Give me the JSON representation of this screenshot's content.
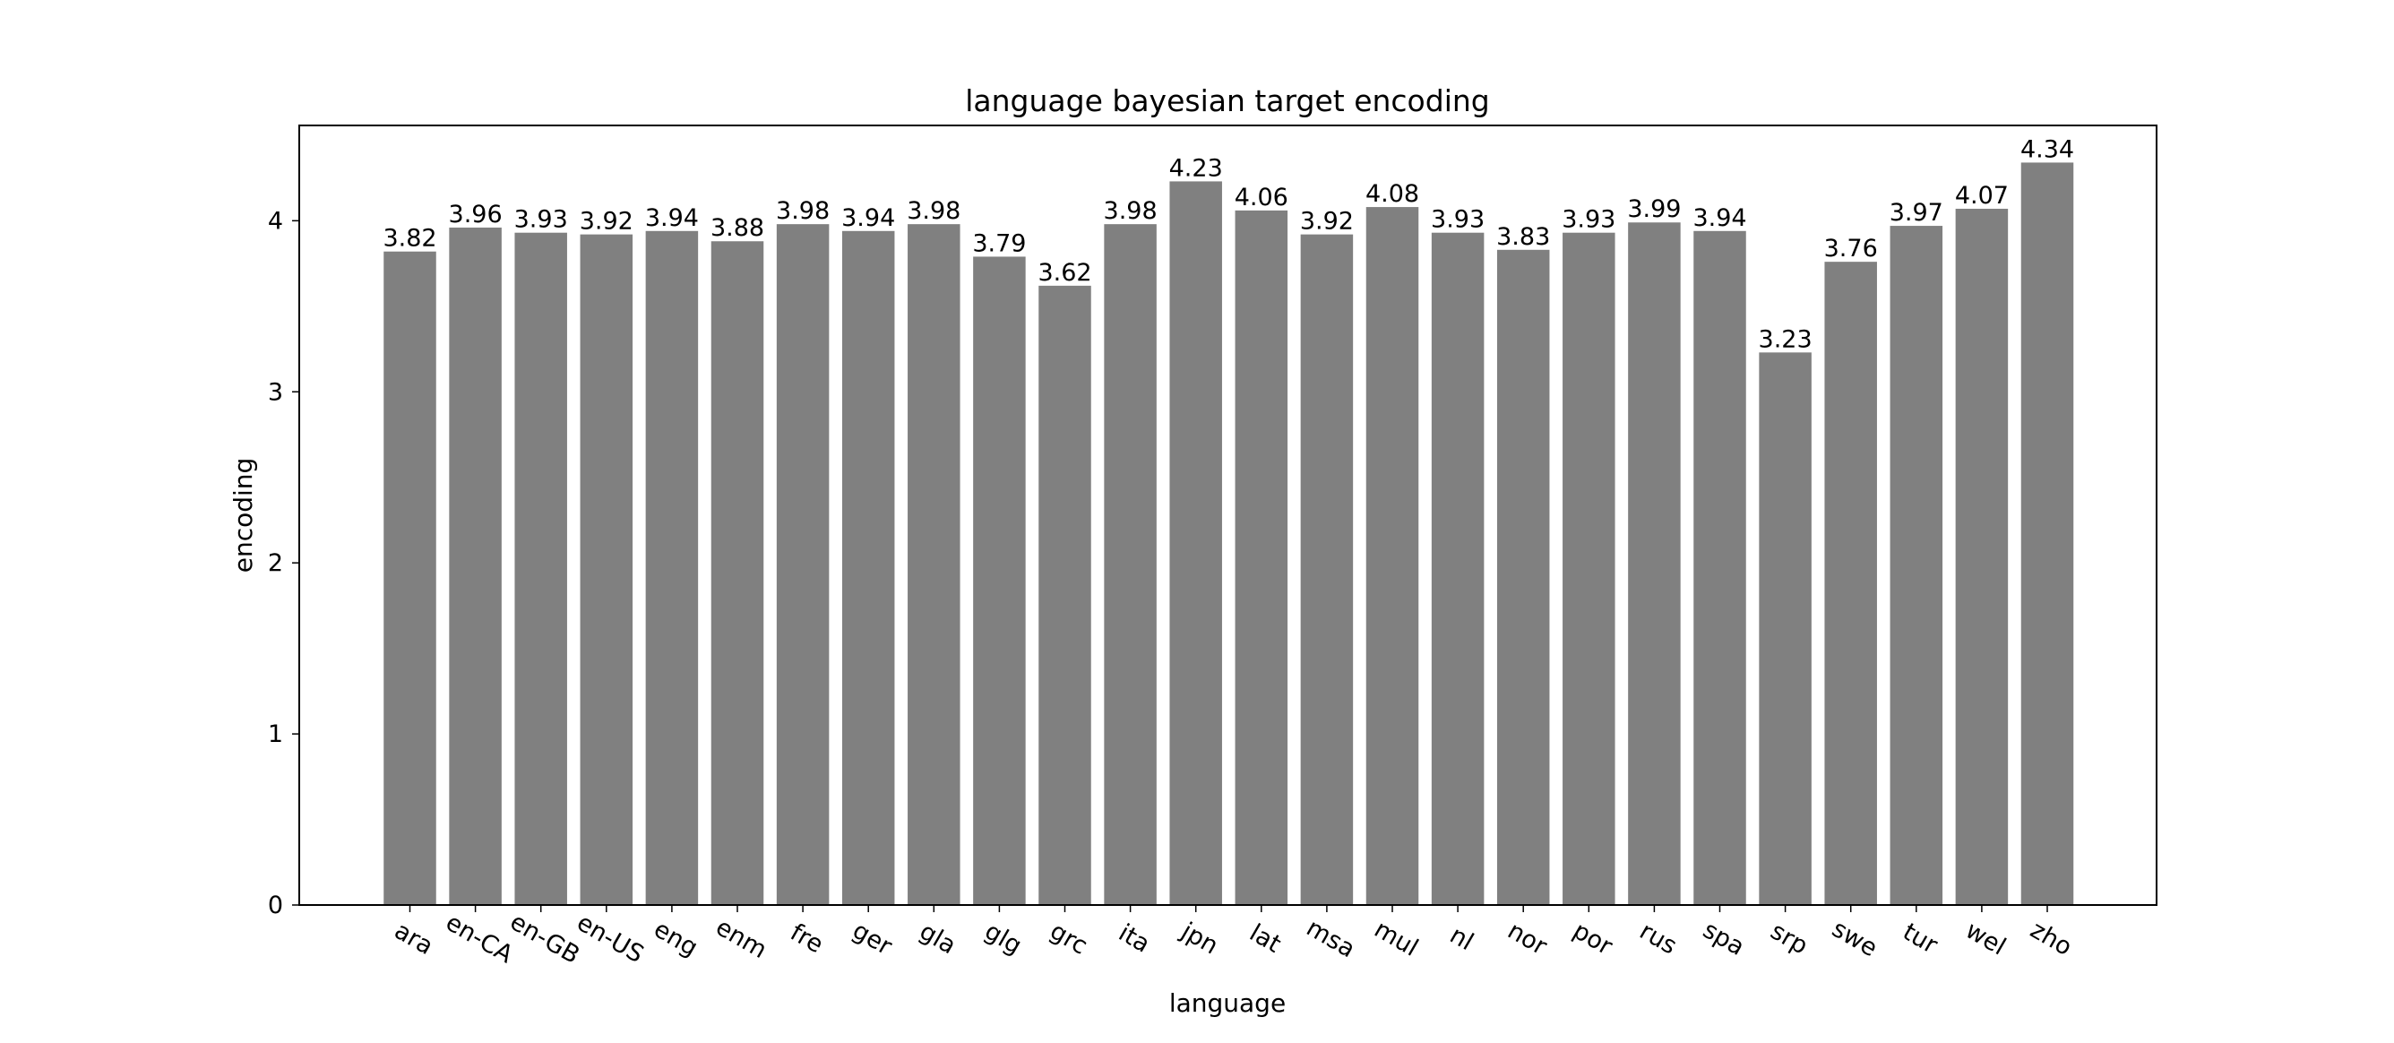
{
  "chart_data": {
    "type": "bar",
    "title": "language bayesian target encoding",
    "xlabel": "language",
    "ylabel": "encoding",
    "categories": [
      "ara",
      "en-CA",
      "en-GB",
      "en-US",
      "eng",
      "enm",
      "fre",
      "ger",
      "gla",
      "glg",
      "grc",
      "ita",
      "jpn",
      "lat",
      "msa",
      "mul",
      "nl",
      "nor",
      "por",
      "rus",
      "spa",
      "srp",
      "swe",
      "tur",
      "wel",
      "zho"
    ],
    "values": [
      3.82,
      3.96,
      3.93,
      3.92,
      3.94,
      3.88,
      3.98,
      3.94,
      3.98,
      3.79,
      3.62,
      3.98,
      4.23,
      4.06,
      3.92,
      4.08,
      3.93,
      3.83,
      3.93,
      3.99,
      3.94,
      3.23,
      3.76,
      3.97,
      4.07,
      4.34
    ],
    "data_labels": [
      "3.82",
      "3.96",
      "3.93",
      "3.92",
      "3.94",
      "3.88",
      "3.98",
      "3.94",
      "3.98",
      "3.79",
      "3.62",
      "3.98",
      "4.23",
      "4.06",
      "3.92",
      "4.08",
      "3.93",
      "3.83",
      "3.93",
      "3.99",
      "3.94",
      "3.23",
      "3.76",
      "3.97",
      "4.07",
      "4.34"
    ],
    "yticks": [
      "0",
      "1",
      "2",
      "3",
      "4"
    ],
    "ylim": [
      0,
      4.557
    ],
    "bar_color": "#808080",
    "grid": false,
    "legend": "none"
  }
}
